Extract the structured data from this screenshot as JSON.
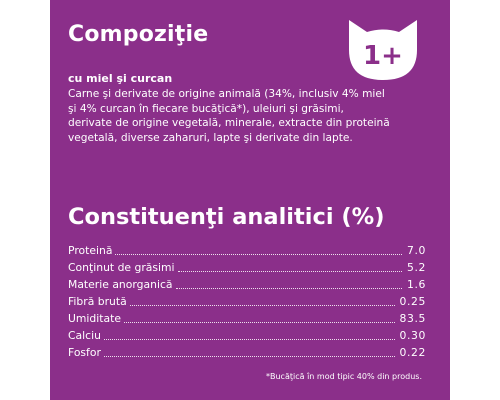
{
  "composition": {
    "title": "Compoziţie",
    "age_badge": "1+",
    "subheading": "cu miel şi curcan",
    "description": "Carne şi derivate de origine animală (34%, inclusiv 4% miel şi 4% curcan în fiecare bucăţică*), uleiuri şi grăsimi, derivate de origine vegetală, minerale, extracte din proteină vegetală, diverse zaharuri, lapte şi derivate din lapte."
  },
  "analytic": {
    "title": "Constituenţi analitici (%)",
    "rows": [
      {
        "label": "Proteină",
        "value": "7.0"
      },
      {
        "label": "Conţinut de grăsimi",
        "value": "5.2"
      },
      {
        "label": "Materie anorganică",
        "value": "1.6"
      },
      {
        "label": "Fibră brută",
        "value": "0.25"
      },
      {
        "label": "Umiditate",
        "value": "83.5"
      },
      {
        "label": "Calciu",
        "value": "0.30"
      },
      {
        "label": "Fosfor",
        "value": "0.22"
      }
    ]
  },
  "footnote": "*Bucăţică în mod tipic 40% din produs.",
  "colors": {
    "background": "#8b2f8a",
    "text": "#ffffff"
  },
  "icons": {
    "badge": "cat-head-icon"
  }
}
